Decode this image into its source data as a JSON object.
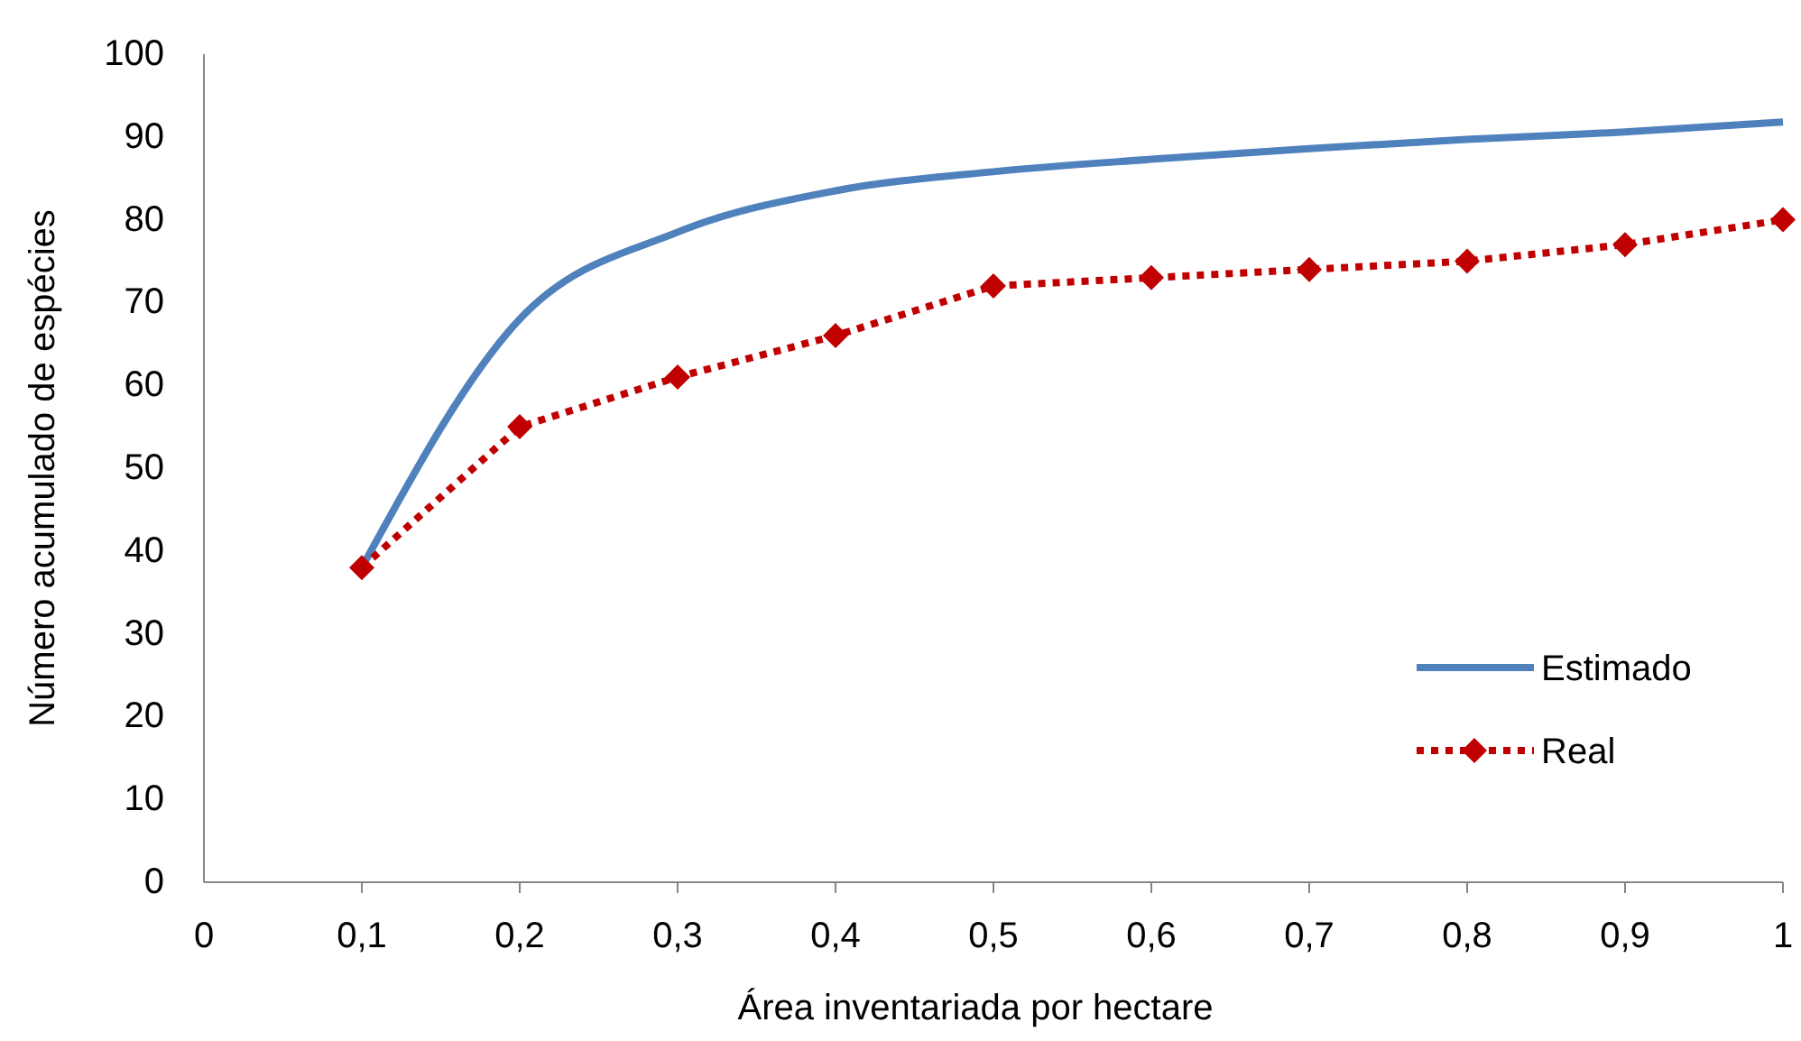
{
  "chart_data": {
    "type": "line",
    "xlabel": "Área inventariada por hectare",
    "ylabel": "Número acumulado de espécies",
    "x": [
      0.1,
      0.2,
      0.3,
      0.4,
      0.5,
      0.6,
      0.7,
      0.8,
      0.9,
      1
    ],
    "xlim": [
      0,
      1
    ],
    "xticks": [
      {
        "value": 0,
        "label": "0"
      },
      {
        "value": 0.1,
        "label": "0,1"
      },
      {
        "value": 0.2,
        "label": "0,2"
      },
      {
        "value": 0.3,
        "label": "0,3"
      },
      {
        "value": 0.4,
        "label": "0,4"
      },
      {
        "value": 0.5,
        "label": "0,5"
      },
      {
        "value": 0.6,
        "label": "0,6"
      },
      {
        "value": 0.7,
        "label": "0,7"
      },
      {
        "value": 0.8,
        "label": "0,8"
      },
      {
        "value": 0.9,
        "label": "0,9"
      },
      {
        "value": 1,
        "label": "1"
      }
    ],
    "ylim": [
      0,
      100
    ],
    "yticks": [
      0,
      10,
      20,
      30,
      40,
      50,
      60,
      70,
      80,
      90,
      100
    ],
    "grid": false,
    "legend": "right",
    "series": [
      {
        "name": "Estimado",
        "color": "#4f81bd",
        "marker": "none",
        "line_style": "solid",
        "values": [
          38,
          68,
          78.5,
          83.5,
          85.8,
          87.3,
          88.6,
          89.7,
          90.6,
          91.8
        ]
      },
      {
        "name": "Real",
        "color": "#c00000",
        "marker": "diamond",
        "line_style": "dotted",
        "values": [
          38,
          55,
          61,
          66,
          72,
          73,
          74,
          75,
          77,
          80
        ]
      }
    ]
  }
}
